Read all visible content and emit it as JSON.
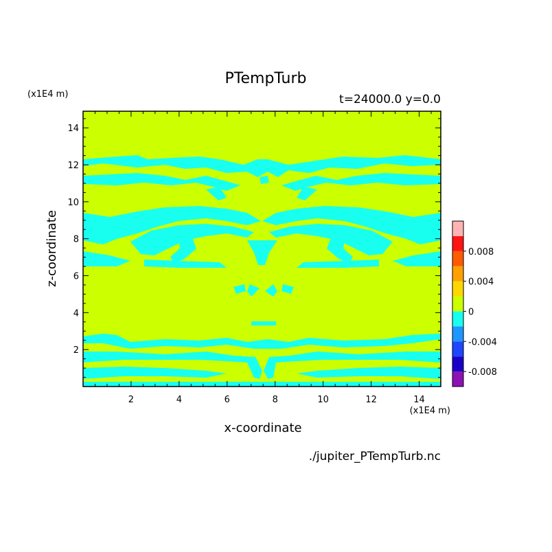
{
  "chart_data": {
    "type": "heatmap",
    "title": "PTempTurb",
    "subtitle": "t=24000.0 y=0.0",
    "xlabel": "x-coordinate",
    "ylabel": "z-coordinate",
    "x_unit": "(x1E4 m)",
    "z_unit": "(x1E4 m)",
    "source_file": "./jupiter_PTempTurb.nc",
    "xlim": [
      0,
      14.9
    ],
    "ylim": [
      0,
      14.9
    ],
    "x_ticks": [
      2,
      4,
      6,
      8,
      10,
      12,
      14
    ],
    "y_ticks": [
      2,
      4,
      6,
      8,
      10,
      12,
      14
    ],
    "grid": false,
    "background_level": "0 to 0.002",
    "colorbar": {
      "tick_labels": [
        "0.008",
        "0.004",
        "0",
        "-0.004",
        "-0.008"
      ],
      "tick_values": [
        0.008,
        0.004,
        0,
        -0.004,
        -0.008
      ],
      "levels": [
        {
          "range": [
            -0.01,
            -0.008
          ],
          "color": "#8c12b4"
        },
        {
          "range": [
            -0.008,
            -0.006
          ],
          "color": "#1a00c8"
        },
        {
          "range": [
            -0.006,
            -0.004
          ],
          "color": "#1e46ff"
        },
        {
          "range": [
            -0.004,
            -0.002
          ],
          "color": "#1e96ff"
        },
        {
          "range": [
            -0.002,
            0.0
          ],
          "color": "#18fff0"
        },
        {
          "range": [
            0.0,
            0.002
          ],
          "color": "#ccff00"
        },
        {
          "range": [
            0.002,
            0.004
          ],
          "color": "#ffd700"
        },
        {
          "range": [
            0.004,
            0.006
          ],
          "color": "#ffa000"
        },
        {
          "range": [
            0.006,
            0.008
          ],
          "color": "#ff5a00"
        },
        {
          "range": [
            0.008,
            0.01
          ],
          "color": "#ff1414"
        },
        {
          "range": [
            0.01,
            0.012
          ],
          "color": "#ffb4b4"
        }
      ]
    },
    "negative_region_color": "#18fff0",
    "background_color": "#ccff00"
  }
}
